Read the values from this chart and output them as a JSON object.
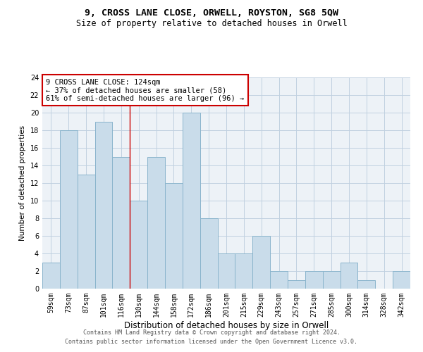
{
  "title1": "9, CROSS LANE CLOSE, ORWELL, ROYSTON, SG8 5QW",
  "title2": "Size of property relative to detached houses in Orwell",
  "xlabel": "Distribution of detached houses by size in Orwell",
  "ylabel": "Number of detached properties",
  "categories": [
    "59sqm",
    "73sqm",
    "87sqm",
    "101sqm",
    "116sqm",
    "130sqm",
    "144sqm",
    "158sqm",
    "172sqm",
    "186sqm",
    "201sqm",
    "215sqm",
    "229sqm",
    "243sqm",
    "257sqm",
    "271sqm",
    "285sqm",
    "300sqm",
    "314sqm",
    "328sqm",
    "342sqm"
  ],
  "values": [
    3,
    18,
    13,
    19,
    15,
    10,
    15,
    12,
    20,
    8,
    4,
    4,
    6,
    2,
    1,
    2,
    2,
    3,
    1,
    0,
    2
  ],
  "bar_color": "#c9dcea",
  "bar_edge_color": "#8ab4cc",
  "vline_x": 4.5,
  "vline_color": "#cc0000",
  "annotation_text": "9 CROSS LANE CLOSE: 124sqm\n← 37% of detached houses are smaller (58)\n61% of semi-detached houses are larger (96) →",
  "annotation_box_color": "#ffffff",
  "annotation_box_edge_color": "#cc0000",
  "ylim": [
    0,
    24
  ],
  "yticks": [
    0,
    2,
    4,
    6,
    8,
    10,
    12,
    14,
    16,
    18,
    20,
    22,
    24
  ],
  "grid_color": "#c0d0e0",
  "background_color": "#edf2f7",
  "footer1": "Contains HM Land Registry data © Crown copyright and database right 2024.",
  "footer2": "Contains public sector information licensed under the Open Government Licence v3.0.",
  "title1_fontsize": 9.5,
  "title2_fontsize": 8.5,
  "xlabel_fontsize": 8.5,
  "ylabel_fontsize": 7.5,
  "tick_fontsize": 7,
  "annotation_fontsize": 7.5,
  "footer_fontsize": 6
}
